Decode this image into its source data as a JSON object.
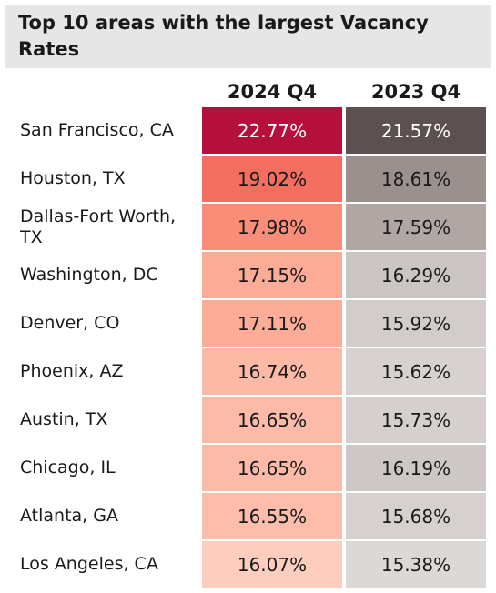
{
  "title": "Top 10 areas with the largest Vacancy Rates",
  "chart_data": {
    "type": "table",
    "columns": [
      "2024 Q4",
      "2023 Q4"
    ],
    "rows": [
      {
        "area": "San Francisco, CA",
        "q4_2024": "22.77%",
        "q4_2023": "21.57%",
        "color_2024": "#b5103b",
        "color_2023": "#5c5150"
      },
      {
        "area": "Houston, TX",
        "q4_2024": "19.02%",
        "q4_2023": "18.61%",
        "color_2024": "#f46e5f",
        "color_2023": "#9a908e"
      },
      {
        "area": "Dallas-Fort Worth, TX",
        "q4_2024": "17.98%",
        "q4_2023": "17.59%",
        "color_2024": "#f98e78",
        "color_2023": "#b0a7a5"
      },
      {
        "area": "Washington, DC",
        "q4_2024": "17.15%",
        "q4_2023": "16.29%",
        "color_2024": "#fcab96",
        "color_2023": "#cbc5c3"
      },
      {
        "area": "Denver, CO",
        "q4_2024": "17.11%",
        "q4_2023": "15.92%",
        "color_2024": "#fcac97",
        "color_2023": "#d2ccca"
      },
      {
        "area": "Phoenix, AZ",
        "q4_2024": "16.74%",
        "q4_2023": "15.62%",
        "color_2024": "#fcb9a5",
        "color_2023": "#d7d2d0"
      },
      {
        "area": "Austin, TX",
        "q4_2024": "16.65%",
        "q4_2023": "15.73%",
        "color_2024": "#fcbba8",
        "color_2023": "#d5d0ce"
      },
      {
        "area": "Chicago, IL",
        "q4_2024": "16.65%",
        "q4_2023": "16.19%",
        "color_2024": "#fcbba8",
        "color_2023": "#cdc7c5"
      },
      {
        "area": "Atlanta, GA",
        "q4_2024": "16.55%",
        "q4_2023": "15.68%",
        "color_2024": "#fcbdab",
        "color_2023": "#d6d1cf"
      },
      {
        "area": "Los Angeles, CA",
        "q4_2024": "16.07%",
        "q4_2023": "15.38%",
        "color_2024": "#fdcdbd",
        "color_2023": "#dcd8d6"
      }
    ]
  }
}
